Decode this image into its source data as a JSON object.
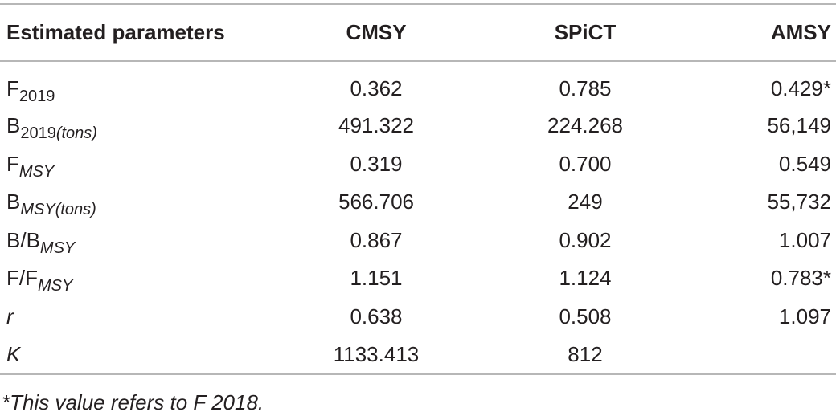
{
  "table": {
    "headers": [
      "Estimated parameters",
      "CMSY",
      "SPiCT",
      "AMSY"
    ],
    "rows": [
      {
        "param": {
          "base": "F",
          "sub": "2019",
          "sub_note": "",
          "italic_base": false,
          "italic_sub": false
        },
        "cmsy": "0.362",
        "spict": "0.785",
        "amsy": "0.429*"
      },
      {
        "param": {
          "base": "B",
          "sub": "2019",
          "sub_note": "(tons)",
          "italic_base": false,
          "italic_sub": false
        },
        "cmsy": "491.322",
        "spict": "224.268",
        "amsy": "56,149"
      },
      {
        "param": {
          "base": "F",
          "sub": "MSY",
          "sub_note": "",
          "italic_base": false,
          "italic_sub": true
        },
        "cmsy": "0.319",
        "spict": "0.700",
        "amsy": "0.549"
      },
      {
        "param": {
          "base": "B",
          "sub": "MSY",
          "sub_note": "(tons)",
          "italic_base": false,
          "italic_sub": true
        },
        "cmsy": "566.706",
        "spict": "249",
        "amsy": "55,732"
      },
      {
        "param": {
          "base": "B/B",
          "sub": "MSY",
          "sub_note": "",
          "italic_base": false,
          "italic_sub": true
        },
        "cmsy": "0.867",
        "spict": "0.902",
        "amsy": "1.007"
      },
      {
        "param": {
          "base": "F/F",
          "sub": "MSY",
          "sub_note": "",
          "italic_base": false,
          "italic_sub": true
        },
        "cmsy": "1.151",
        "spict": "1.124",
        "amsy": "0.783*"
      },
      {
        "param": {
          "base": "r",
          "sub": "",
          "sub_note": "",
          "italic_base": true,
          "italic_sub": false
        },
        "cmsy": "0.638",
        "spict": "0.508",
        "amsy": "1.097"
      },
      {
        "param": {
          "base": "K",
          "sub": "",
          "sub_note": "",
          "italic_base": true,
          "italic_sub": false
        },
        "cmsy": "1133.413",
        "spict": "812",
        "amsy": ""
      }
    ]
  },
  "footnote": "*This value refers to F 2018."
}
